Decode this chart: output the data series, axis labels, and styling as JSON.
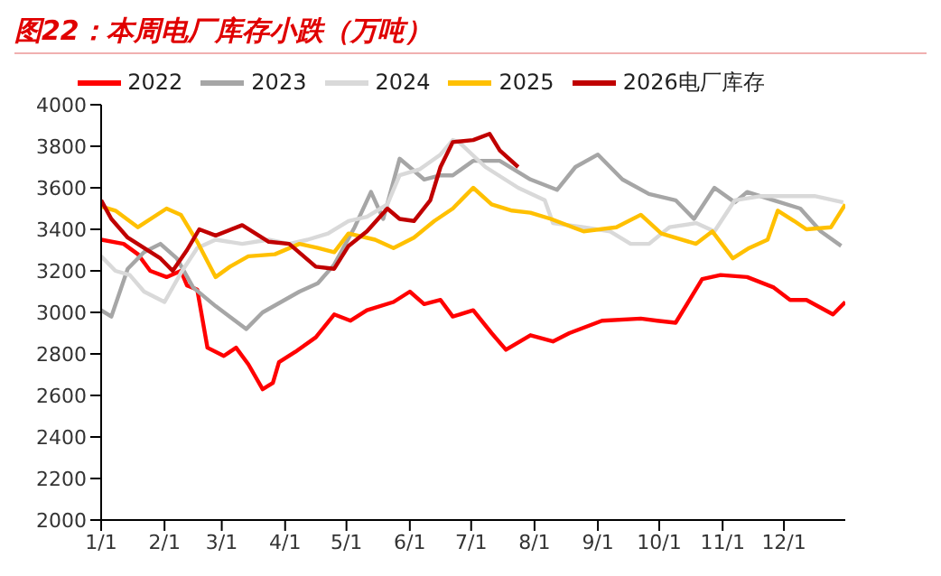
{
  "chart_data": {
    "type": "line",
    "title": "图22：本周电厂库存小跌（万吨）",
    "xlim": [
      "--01-01",
      "--12-31"
    ],
    "xticks": [
      {
        "value": "--01-01",
        "label": "1/1"
      },
      {
        "value": "--02-01",
        "label": "2/1"
      },
      {
        "value": "--03-01",
        "label": "3/1"
      },
      {
        "value": "--04-01",
        "label": "4/1"
      },
      {
        "value": "--05-01",
        "label": "5/1"
      },
      {
        "value": "--06-01",
        "label": "6/1"
      },
      {
        "value": "--07-01",
        "label": "7/1"
      },
      {
        "value": "--08-01",
        "label": "8/1"
      },
      {
        "value": "--09-01",
        "label": "9/1"
      },
      {
        "value": "--10-01",
        "label": "10/1"
      },
      {
        "value": "--11-01",
        "label": "11/1"
      },
      {
        "value": "--12-01",
        "label": "12/1"
      }
    ],
    "ylim": [
      2000,
      4000
    ],
    "yticks": [
      2000,
      2200,
      2400,
      2600,
      2800,
      3000,
      3200,
      3400,
      3600,
      3800,
      4000
    ],
    "grid": false,
    "legend": "top",
    "marker": "none",
    "line_style": "solid",
    "series": [
      {
        "name": "2022",
        "color": "#ff0000",
        "x": [
          "--01-01",
          "--01-12",
          "--01-19",
          "--01-25",
          "--02-02",
          "--02-09",
          "--02-12",
          "--02-17",
          "--02-22",
          "--03-02",
          "--03-08",
          "--03-14",
          "--03-21",
          "--03-26",
          "--03-29",
          "--04-06",
          "--04-16",
          "--04-25",
          "--05-03",
          "--05-11",
          "--05-24",
          "--06-01",
          "--06-08",
          "--06-16",
          "--06-22",
          "--07-02",
          "--07-11",
          "--07-18",
          "--07-30",
          "--08-10",
          "--08-18",
          "--09-03",
          "--09-22",
          "--09-30",
          "--10-09",
          "--10-22",
          "--10-31",
          "--11-13",
          "--11-26",
          "--12-04",
          "--12-12",
          "--12-25",
          "--12-31"
        ],
        "values": [
          3350,
          3330,
          3280,
          3200,
          3170,
          3200,
          3130,
          3110,
          2830,
          2790,
          2830,
          2750,
          2630,
          2660,
          2760,
          2810,
          2880,
          2990,
          2960,
          3010,
          3050,
          3100,
          3040,
          3060,
          2980,
          3010,
          2900,
          2820,
          2890,
          2860,
          2900,
          2960,
          2970,
          2960,
          2950,
          3160,
          3180,
          3170,
          3120,
          3060,
          3060,
          2990,
          3050
        ]
      },
      {
        "name": "2023",
        "color": "#a6a6a6",
        "x": [
          "--01-01",
          "--01-06",
          "--01-14",
          "--01-22",
          "--01-30",
          "--02-07",
          "--02-15",
          "--02-26",
          "--03-13",
          "--03-21",
          "--03-30",
          "--04-08",
          "--04-17",
          "--04-25",
          "--05-05",
          "--05-13",
          "--05-19",
          "--05-27",
          "--06-08",
          "--06-16",
          "--06-22",
          "--07-02",
          "--07-15",
          "--07-30",
          "--08-12",
          "--08-21",
          "--09-01",
          "--09-13",
          "--09-26",
          "--10-09",
          "--10-18",
          "--10-28",
          "--11-07",
          "--11-13",
          "--11-26",
          "--12-09",
          "--12-19",
          "--12-29"
        ],
        "values": [
          3010,
          2980,
          3210,
          3290,
          3330,
          3260,
          3120,
          3030,
          2920,
          3000,
          3050,
          3100,
          3140,
          3230,
          3410,
          3580,
          3450,
          3740,
          3640,
          3660,
          3660,
          3730,
          3730,
          3640,
          3590,
          3700,
          3760,
          3640,
          3570,
          3540,
          3450,
          3600,
          3530,
          3580,
          3540,
          3500,
          3390,
          3320
        ]
      },
      {
        "name": "2024",
        "color": "#d9d9d9",
        "x": [
          "--01-01",
          "--01-08",
          "--01-15",
          "--01-22",
          "--02-01",
          "--02-09",
          "--02-17",
          "--02-26",
          "--03-11",
          "--03-24",
          "--04-03",
          "--04-12",
          "--04-22",
          "--05-02",
          "--05-11",
          "--05-21",
          "--05-27",
          "--06-06",
          "--06-16",
          "--06-22",
          "--06-25",
          "--07-08",
          "--07-24",
          "--08-06",
          "--08-10",
          "--08-25",
          "--09-07",
          "--09-17",
          "--09-26",
          "--10-06",
          "--10-19",
          "--10-28",
          "--11-07",
          "--11-20",
          "--12-03",
          "--12-16",
          "--12-30"
        ],
        "values": [
          3270,
          3200,
          3180,
          3100,
          3050,
          3190,
          3310,
          3350,
          3330,
          3350,
          3330,
          3350,
          3380,
          3440,
          3460,
          3520,
          3660,
          3690,
          3760,
          3830,
          3820,
          3700,
          3600,
          3540,
          3430,
          3410,
          3390,
          3330,
          3330,
          3410,
          3430,
          3390,
          3540,
          3560,
          3560,
          3560,
          3530
        ]
      },
      {
        "name": "2025",
        "color": "#ffc000",
        "x": [
          "--01-01",
          "--01-08",
          "--01-19",
          "--02-02",
          "--02-09",
          "--02-17",
          "--02-26",
          "--03-05",
          "--03-14",
          "--03-27",
          "--04-08",
          "--04-17",
          "--04-25",
          "--05-02",
          "--05-15",
          "--05-24",
          "--06-03",
          "--06-13",
          "--06-22",
          "--07-02",
          "--07-11",
          "--07-21",
          "--07-30",
          "--08-09",
          "--08-25",
          "--09-10",
          "--09-22",
          "--10-02",
          "--10-19",
          "--10-27",
          "--11-06",
          "--11-14",
          "--11-23",
          "--11-28",
          "--12-06",
          "--12-12",
          "--12-24",
          "--12-31"
        ],
        "values": [
          3510,
          3490,
          3410,
          3500,
          3470,
          3340,
          3170,
          3220,
          3270,
          3280,
          3330,
          3310,
          3290,
          3380,
          3350,
          3310,
          3360,
          3440,
          3500,
          3600,
          3520,
          3490,
          3480,
          3450,
          3390,
          3410,
          3470,
          3380,
          3330,
          3390,
          3260,
          3310,
          3350,
          3490,
          3440,
          3400,
          3410,
          3520
        ]
      },
      {
        "name": "2026电厂库存",
        "color": "#c00000",
        "x": [
          "--01-01",
          "--01-06",
          "--01-14",
          "--01-22",
          "--01-30",
          "--02-05",
          "--02-12",
          "--02-18",
          "--02-26",
          "--03-11",
          "--03-24",
          "--04-03",
          "--04-16",
          "--04-25",
          "--05-02",
          "--05-11",
          "--05-21",
          "--05-27",
          "--06-03",
          "--06-11",
          "--06-16",
          "--06-22",
          "--07-02",
          "--07-10",
          "--07-15",
          "--07-24"
        ],
        "values": [
          3540,
          3450,
          3360,
          3310,
          3260,
          3200,
          3300,
          3400,
          3370,
          3420,
          3340,
          3330,
          3220,
          3210,
          3320,
          3390,
          3500,
          3450,
          3440,
          3540,
          3700,
          3820,
          3830,
          3860,
          3780,
          3700
        ]
      }
    ]
  }
}
